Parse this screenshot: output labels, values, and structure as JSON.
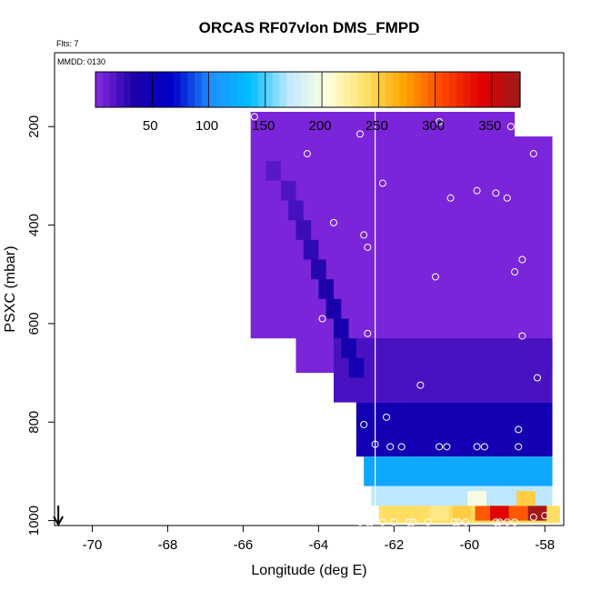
{
  "chart_data": {
    "type": "heatmap",
    "title": "ORCAS RF07vlon DMS_FMPD",
    "subtitle": "Flts: 7",
    "annotation": "MMDD: 0130",
    "xlabel": "Longitude (deg E)",
    "ylabel": "PSXC (mbar)",
    "xlim": [
      -71,
      -57.5
    ],
    "ylim": [
      1010,
      50
    ],
    "x_ticks": [
      -70,
      -68,
      -66,
      -64,
      -62,
      -60,
      -58
    ],
    "y_ticks": [
      200,
      400,
      600,
      800,
      1000
    ],
    "colorbar": {
      "range": [
        0,
        375
      ],
      "ticks": [
        50,
        100,
        150,
        200,
        250,
        300,
        350
      ],
      "colors": [
        "#8a2be2",
        "#1a00a8",
        "#0000c8",
        "#1e90ff",
        "#00bfff",
        "#bfe8ff",
        "#ffffe0",
        "#ffe066",
        "#ffa500",
        "#ff4500",
        "#e00000",
        "#9b1b1b"
      ]
    },
    "grid_cell": {
      "lon_width": 0.5,
      "pressure_height": 20
    },
    "regions": [
      {
        "lon": [
          -65.8,
          -58.8
        ],
        "p": [
          170,
          630
        ],
        "value": 5
      },
      {
        "lon": [
          -64.6,
          -57.8
        ],
        "p": [
          220,
          700
        ],
        "value": 5
      },
      {
        "lon": [
          -63.6,
          -57.8
        ],
        "p": [
          630,
          760
        ],
        "value": 20
      },
      {
        "lon": [
          -63.0,
          -57.8
        ],
        "p": [
          760,
          870
        ],
        "value": 45
      },
      {
        "lon": [
          -62.8,
          -57.8
        ],
        "p": [
          870,
          930
        ],
        "value": 120
      },
      {
        "lon": [
          -62.6,
          -57.8
        ],
        "p": [
          930,
          970
        ],
        "value": 170
      },
      {
        "lon": [
          -62.4,
          -57.6
        ],
        "p": [
          970,
          1005
        ],
        "value": 240
      }
    ],
    "hot_cells": [
      {
        "lon": -60.8,
        "p": 985,
        "value": 230
      },
      {
        "lon": -60.2,
        "p": 985,
        "value": 250
      },
      {
        "lon": -59.6,
        "p": 985,
        "value": 300
      },
      {
        "lon": -59.2,
        "p": 985,
        "value": 340
      },
      {
        "lon": -58.7,
        "p": 985,
        "value": 300
      },
      {
        "lon": -58.2,
        "p": 985,
        "value": 370
      },
      {
        "lon": -59.8,
        "p": 955,
        "value": 200
      },
      {
        "lon": -58.5,
        "p": 955,
        "value": 250
      }
    ],
    "vertical_line_lon": -62.5,
    "points": [
      {
        "lon": -65.7,
        "p": 180
      },
      {
        "lon": -64.3,
        "p": 255
      },
      {
        "lon": -62.9,
        "p": 215
      },
      {
        "lon": -62.3,
        "p": 315
      },
      {
        "lon": -60.8,
        "p": 190
      },
      {
        "lon": -59.8,
        "p": 330
      },
      {
        "lon": -59.3,
        "p": 335
      },
      {
        "lon": -59.0,
        "p": 345
      },
      {
        "lon": -58.9,
        "p": 200
      },
      {
        "lon": -58.3,
        "p": 255
      },
      {
        "lon": -60.5,
        "p": 345
      },
      {
        "lon": -63.6,
        "p": 395
      },
      {
        "lon": -62.8,
        "p": 420
      },
      {
        "lon": -62.7,
        "p": 445
      },
      {
        "lon": -60.9,
        "p": 505
      },
      {
        "lon": -58.8,
        "p": 495
      },
      {
        "lon": -58.6,
        "p": 470
      },
      {
        "lon": -63.9,
        "p": 590
      },
      {
        "lon": -62.7,
        "p": 620
      },
      {
        "lon": -58.6,
        "p": 625
      },
      {
        "lon": -58.2,
        "p": 710
      },
      {
        "lon": -61.3,
        "p": 725
      },
      {
        "lon": -62.2,
        "p": 790
      },
      {
        "lon": -62.8,
        "p": 805
      },
      {
        "lon": -58.7,
        "p": 815
      },
      {
        "lon": -62.5,
        "p": 845
      },
      {
        "lon": -62.1,
        "p": 850
      },
      {
        "lon": -61.8,
        "p": 850
      },
      {
        "lon": -60.8,
        "p": 850
      },
      {
        "lon": -60.6,
        "p": 850
      },
      {
        "lon": -59.8,
        "p": 850
      },
      {
        "lon": -59.6,
        "p": 850
      },
      {
        "lon": -58.7,
        "p": 850
      },
      {
        "lon": -62.9,
        "p": 1003
      },
      {
        "lon": -62.7,
        "p": 1003
      },
      {
        "lon": -62.6,
        "p": 1003
      },
      {
        "lon": -62.3,
        "p": 1003
      },
      {
        "lon": -62.0,
        "p": 1003
      },
      {
        "lon": -61.6,
        "p": 1003
      },
      {
        "lon": -61.5,
        "p": 1003
      },
      {
        "lon": -61.1,
        "p": 1003
      },
      {
        "lon": -60.4,
        "p": 1003
      },
      {
        "lon": -60.3,
        "p": 1003
      },
      {
        "lon": -60.1,
        "p": 1003
      },
      {
        "lon": -59.3,
        "p": 1003
      },
      {
        "lon": -59.2,
        "p": 1003
      },
      {
        "lon": -59.0,
        "p": 1003
      },
      {
        "lon": -58.8,
        "p": 1003
      },
      {
        "lon": -58.3,
        "p": 993
      },
      {
        "lon": -58.0,
        "p": 990
      }
    ],
    "arrow": {
      "lon": -70.9,
      "label": "arrow-marker"
    }
  }
}
